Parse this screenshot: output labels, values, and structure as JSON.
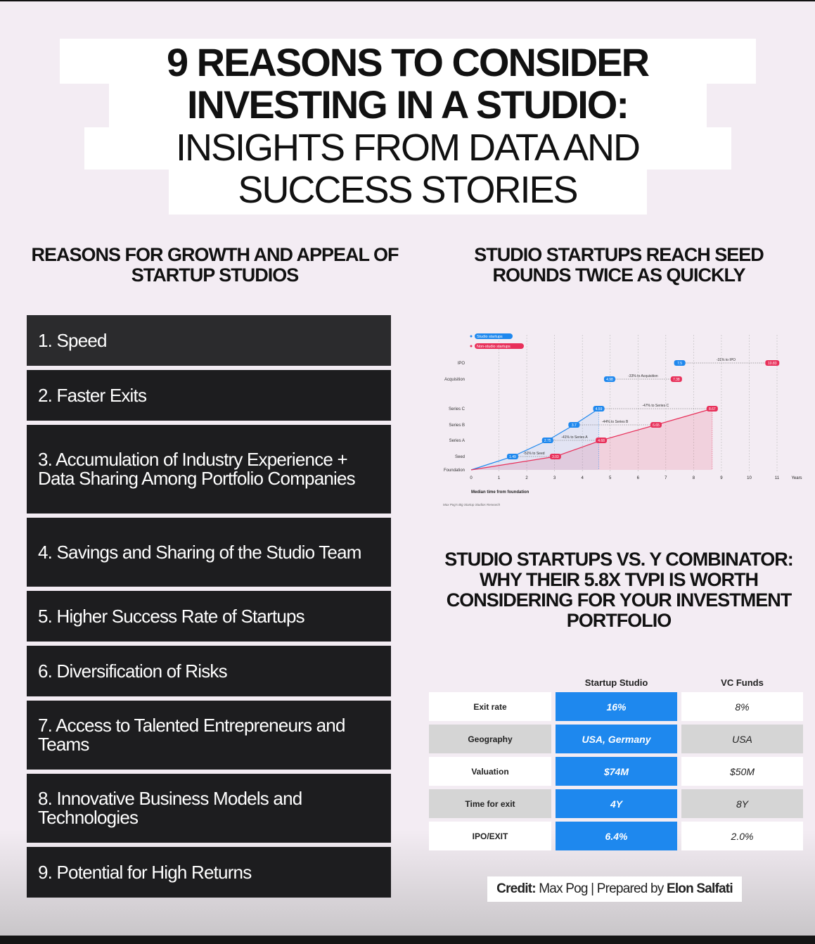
{
  "title": {
    "line1": "9 REASONS TO CONSIDER",
    "line2": "INVESTING IN A STUDIO:",
    "line3": "INSIGHTS FROM DATA AND",
    "line4": "SUCCESS STORIES"
  },
  "reasons_heading": "REASONS FOR GROWTH AND APPEAL OF STARTUP STUDIOS",
  "reasons": [
    "1. Speed",
    "2. Faster Exits",
    "3. Accumulation of Industry Experience + Data Sharing Among Portfolio Companies",
    "4. Savings and Sharing of the Studio Team",
    "5. Higher Success Rate of Startups",
    "6. Diversification of Risks",
    "7. Access to Talented Entrepreneurs and Teams",
    "8. Innovative Business Models and Technologies",
    "9. Potential for High Returns"
  ],
  "chart_heading": "STUDIO STARTUPS REACH SEED ROUNDS TWICE AS QUICKLY",
  "chart_data": {
    "type": "line",
    "categories": [
      "Foundation",
      "Seed",
      "Series A",
      "Series B",
      "Series C",
      "Acquisition",
      "IPO"
    ],
    "series": [
      {
        "name": "Studio startups",
        "color": "#1e88ee",
        "points": [
          [
            0,
            "Foundation"
          ],
          [
            1.49,
            "Seed"
          ],
          [
            2.75,
            "Series A"
          ],
          [
            3.7,
            "Series B"
          ],
          [
            4.59,
            "Series C"
          ],
          [
            4.98,
            "Acquisition"
          ],
          [
            7.5,
            "IPO"
          ]
        ],
        "labels": [
          "1.49",
          "2.75",
          "3.7",
          "4.59",
          "4.98",
          "7.5"
        ]
      },
      {
        "name": "Non-studio startups",
        "color": "#e8305a",
        "points": [
          [
            0,
            "Foundation"
          ],
          [
            3.03,
            "Seed"
          ],
          [
            4.68,
            "Series A"
          ],
          [
            6.65,
            "Series B"
          ],
          [
            8.67,
            "Series C"
          ],
          [
            7.38,
            "Acquisition"
          ],
          [
            10.83,
            "IPO"
          ]
        ],
        "labels": [
          "3.03",
          "4.68",
          "6.65",
          "8.67",
          "7.38",
          "10.83"
        ]
      }
    ],
    "annotations": [
      "-51% to Seed",
      "-41% to Series A",
      "-44% to Series B",
      "-47% to Series C",
      "-33% to Acquisition",
      "-31% to IPO"
    ],
    "xticks": [
      "0",
      "1",
      "2",
      "3",
      "4",
      "5",
      "6",
      "7",
      "8",
      "9",
      "10",
      "11"
    ],
    "xunit": "Years",
    "xlabel": "Median time from foundation",
    "xlim": [
      0,
      11
    ],
    "source": "Max Pog's Big Startup Studios Research",
    "legend": "top-left"
  },
  "table_heading": "STUDIO STARTUPS VS. Y COMBINATOR: WHY THEIR 5.8X TVPI IS WORTH CONSIDERING FOR YOUR INVESTMENT PORTFOLIO",
  "table": {
    "columns": [
      "Startup Studio",
      "VC Funds"
    ],
    "rows": [
      {
        "label": "Exit rate",
        "studio": "16%",
        "vc": "8%"
      },
      {
        "label": "Geography",
        "studio": "USA, Germany",
        "vc": "USA"
      },
      {
        "label": "Valuation",
        "studio": "$74M",
        "vc": "$50M"
      },
      {
        "label": "Time for exit",
        "studio": "4Y",
        "vc": "8Y"
      },
      {
        "label": "IPO/EXIT",
        "studio": "6.4%",
        "vc": "2.0%"
      }
    ]
  },
  "credit": {
    "label": "Credit:",
    "author": "Max Pog",
    "sep": " | Prepared by ",
    "preparer": "Elon Salfati"
  }
}
